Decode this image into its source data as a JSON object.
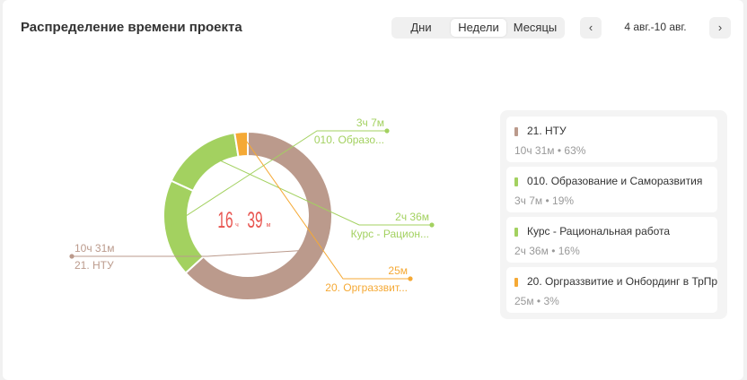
{
  "header": {
    "title": "Распределение времени проекта",
    "tabs": [
      {
        "label": "Дни",
        "active": false
      },
      {
        "label": "Недели",
        "active": true
      },
      {
        "label": "Месяцы",
        "active": false
      }
    ],
    "date_range": "4 авг.-10 авг.",
    "prev_icon": "chevron-left-icon",
    "next_icon": "chevron-right-icon"
  },
  "center": {
    "hours": "16",
    "hours_unit": "ч",
    "minutes": "39",
    "minutes_unit": "м",
    "color": "#e85550"
  },
  "chart_data": {
    "type": "pie",
    "donut": true,
    "title": "",
    "slices": [
      {
        "label": "21. НТУ",
        "short_label": "21. НТУ",
        "value_minutes": 631,
        "value_text": "10ч 31м",
        "percent": 63,
        "color": "#bb9a8c"
      },
      {
        "label": "010. Образование и Саморазвития",
        "short_label": "010. Образо...",
        "value_minutes": 187,
        "value_text": "3ч 7м",
        "percent": 19,
        "color": "#a3d160"
      },
      {
        "label": "Курс - Рациональная работа",
        "short_label": "Курс - Рацион...",
        "value_minutes": 156,
        "value_text": "2ч 36м",
        "percent": 16,
        "color": "#a3d160"
      },
      {
        "label": "20. Оргразвитие и Онбординг в ТрПр",
        "short_label": "20. Орграззвит...",
        "value_minutes": 25,
        "value_text": "25м",
        "percent": 3,
        "color": "#f5a935"
      }
    ]
  },
  "legend": {
    "items": [
      {
        "name": "21. НТУ",
        "value": "10ч 31м • 63%",
        "color": "#bb9a8c"
      },
      {
        "name": "010. Образование и Саморазвития",
        "value": "3ч 7м • 19%",
        "color": "#a3d160"
      },
      {
        "name": "Курс - Рациональная работа",
        "value": "2ч 36м • 16%",
        "color": "#a3d160"
      },
      {
        "name": "20. Орграззвитие и Онбординг в ТрПр",
        "value": "25м • 3%",
        "color": "#f5a935"
      }
    ]
  }
}
